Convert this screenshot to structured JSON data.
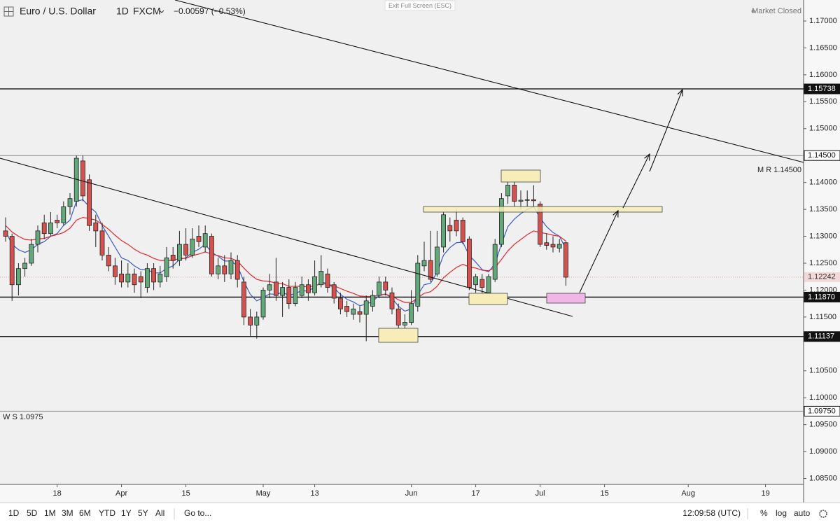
{
  "header": {
    "symbol": "Euro / U.S. Dollar",
    "interval": "1D",
    "exchange": "FXCM",
    "change": "−0.00597 (−0.53%)",
    "exit": "Exit Full Screen (ESC)",
    "status": "Market Closed"
  },
  "toolbar": {
    "ranges": [
      "1D",
      "5D",
      "1M",
      "3M",
      "6M",
      "YTD",
      "1Y",
      "5Y",
      "All"
    ],
    "goto": "Go to...",
    "clock": "12:09:58 (UTC)",
    "percent": "%",
    "log": "log",
    "auto": "auto"
  },
  "chart_data": {
    "type": "candlestick",
    "up_color": "#62a878",
    "down_color": "#d5514e",
    "ylim": [
      1.0839,
      1.1739
    ],
    "yticks": [
      {
        "value": 1.17,
        "label": "1.17000"
      },
      {
        "value": 1.165,
        "label": "1.16500"
      },
      {
        "value": 1.16,
        "label": "1.16000"
      },
      {
        "value": 1.155,
        "label": "1.15500"
      },
      {
        "value": 1.15,
        "label": "1.15000"
      },
      {
        "value": 1.14,
        "label": "1.14000"
      },
      {
        "value": 1.135,
        "label": "1.13500"
      },
      {
        "value": 1.13,
        "label": "1.13000"
      },
      {
        "value": 1.125,
        "label": "1.12500"
      },
      {
        "value": 1.12,
        "label": "1.12000"
      },
      {
        "value": 1.115,
        "label": "1.11500"
      },
      {
        "value": 1.105,
        "label": "1.10500"
      },
      {
        "value": 1.1,
        "label": "1.10000"
      },
      {
        "value": 1.095,
        "label": "1.09500"
      },
      {
        "value": 1.09,
        "label": "1.09000"
      },
      {
        "value": 1.085,
        "label": "1.08500"
      }
    ],
    "xticks": [
      {
        "value": 8,
        "label": "18"
      },
      {
        "value": 18,
        "label": "Apr"
      },
      {
        "value": 28,
        "label": "15"
      },
      {
        "value": 40,
        "label": "May"
      },
      {
        "value": 48,
        "label": "13"
      },
      {
        "value": 63,
        "label": "Jun"
      },
      {
        "value": 73,
        "label": "17"
      },
      {
        "value": 83,
        "label": "Jul"
      },
      {
        "value": 93,
        "label": "15"
      },
      {
        "value": 106,
        "label": "Aug"
      },
      {
        "value": 118,
        "label": "19"
      }
    ],
    "candles": [
      [
        1.131,
        1.1335,
        1.129,
        1.13
      ],
      [
        1.13,
        1.1305,
        1.118,
        1.121
      ],
      [
        1.121,
        1.125,
        1.119,
        1.124
      ],
      [
        1.124,
        1.126,
        1.1225,
        1.125
      ],
      [
        1.125,
        1.1295,
        1.1245,
        1.1285
      ],
      [
        1.1285,
        1.132,
        1.127,
        1.131
      ],
      [
        1.1325,
        1.134,
        1.1295,
        1.1305
      ],
      [
        1.1305,
        1.1345,
        1.13,
        1.1325
      ],
      [
        1.133,
        1.134,
        1.1315,
        1.1325
      ],
      [
        1.1325,
        1.1365,
        1.132,
        1.1355
      ],
      [
        1.1355,
        1.138,
        1.134,
        1.137
      ],
      [
        1.1365,
        1.145,
        1.1355,
        1.1445
      ],
      [
        1.144,
        1.145,
        1.1365,
        1.1375
      ],
      [
        1.1405,
        1.1415,
        1.131,
        1.132
      ],
      [
        1.1325,
        1.134,
        1.128,
        1.131
      ],
      [
        1.131,
        1.1325,
        1.1255,
        1.1265
      ],
      [
        1.1265,
        1.128,
        1.1235,
        1.1245
      ],
      [
        1.1245,
        1.126,
        1.121,
        1.1225
      ],
      [
        1.123,
        1.1255,
        1.1205,
        1.1215
      ],
      [
        1.1215,
        1.125,
        1.1205,
        1.123
      ],
      [
        1.123,
        1.124,
        1.1195,
        1.121
      ],
      [
        1.1225,
        1.1235,
        1.1185,
        1.1215
      ],
      [
        1.1205,
        1.125,
        1.1195,
        1.124
      ],
      [
        1.124,
        1.125,
        1.12,
        1.1215
      ],
      [
        1.1215,
        1.1245,
        1.1205,
        1.123
      ],
      [
        1.1225,
        1.128,
        1.1215,
        1.126
      ],
      [
        1.1265,
        1.128,
        1.124,
        1.1255
      ],
      [
        1.1255,
        1.131,
        1.1245,
        1.1285
      ],
      [
        1.1285,
        1.1315,
        1.1255,
        1.1265
      ],
      [
        1.1265,
        1.1315,
        1.126,
        1.1295
      ],
      [
        1.13,
        1.132,
        1.128,
        1.129
      ],
      [
        1.128,
        1.132,
        1.127,
        1.1305
      ],
      [
        1.13,
        1.1305,
        1.1225,
        1.123
      ],
      [
        1.123,
        1.126,
        1.122,
        1.1245
      ],
      [
        1.1245,
        1.1265,
        1.1215,
        1.123
      ],
      [
        1.123,
        1.127,
        1.122,
        1.1255
      ],
      [
        1.1255,
        1.1265,
        1.1205,
        1.122
      ],
      [
        1.1215,
        1.1225,
        1.1135,
        1.115
      ],
      [
        1.115,
        1.1165,
        1.1115,
        1.1135
      ],
      [
        1.1135,
        1.116,
        1.111,
        1.115
      ],
      [
        1.115,
        1.1205,
        1.1145,
        1.12
      ],
      [
        1.12,
        1.123,
        1.1185,
        1.121
      ],
      [
        1.1215,
        1.126,
        1.118,
        1.119
      ],
      [
        1.119,
        1.1215,
        1.115,
        1.1205
      ],
      [
        1.1205,
        1.122,
        1.1165,
        1.1175
      ],
      [
        1.1175,
        1.1215,
        1.117,
        1.1205
      ],
      [
        1.119,
        1.1225,
        1.1185,
        1.121
      ],
      [
        1.121,
        1.122,
        1.118,
        1.1195
      ],
      [
        1.1195,
        1.1255,
        1.119,
        1.1225
      ],
      [
        1.121,
        1.1265,
        1.1205,
        1.1235
      ],
      [
        1.123,
        1.124,
        1.1195,
        1.1205
      ],
      [
        1.121,
        1.1215,
        1.1175,
        1.1185
      ],
      [
        1.1185,
        1.1195,
        1.1155,
        1.1165
      ],
      [
        1.117,
        1.118,
        1.115,
        1.116
      ],
      [
        1.1155,
        1.1175,
        1.1145,
        1.1165
      ],
      [
        1.116,
        1.117,
        1.114,
        1.1155
      ],
      [
        1.1155,
        1.119,
        1.1105,
        1.118
      ],
      [
        1.117,
        1.12,
        1.116,
        1.119
      ],
      [
        1.119,
        1.1225,
        1.1185,
        1.1215
      ],
      [
        1.1215,
        1.1225,
        1.119,
        1.12
      ],
      [
        1.1195,
        1.1205,
        1.1155,
        1.1165
      ],
      [
        1.1165,
        1.1175,
        1.112,
        1.1135
      ],
      [
        1.1135,
        1.1155,
        1.1115,
        1.114
      ],
      [
        1.114,
        1.12,
        1.1135,
        1.1175
      ],
      [
        1.117,
        1.1265,
        1.116,
        1.125
      ],
      [
        1.1245,
        1.129,
        1.1235,
        1.1255
      ],
      [
        1.1255,
        1.131,
        1.1215,
        1.122
      ],
      [
        1.123,
        1.131,
        1.1225,
        1.128
      ],
      [
        1.128,
        1.1345,
        1.127,
        1.134
      ],
      [
        1.132,
        1.1335,
        1.129,
        1.131
      ],
      [
        1.133,
        1.135,
        1.13,
        1.131
      ],
      [
        1.133,
        1.1335,
        1.1285,
        1.129
      ],
      [
        1.1295,
        1.13,
        1.12,
        1.1205
      ],
      [
        1.121,
        1.123,
        1.1195,
        1.1225
      ],
      [
        1.122,
        1.123,
        1.119,
        1.1205
      ],
      [
        1.1195,
        1.123,
        1.118,
        1.1225
      ],
      [
        1.122,
        1.1295,
        1.1215,
        1.1285
      ],
      [
        1.1285,
        1.138,
        1.128,
        1.137
      ],
      [
        1.1375,
        1.141,
        1.136,
        1.1395
      ],
      [
        1.1395,
        1.141,
        1.1355,
        1.1365
      ],
      [
        1.1365,
        1.1385,
        1.135,
        1.1367
      ],
      [
        1.1368,
        1.1385,
        1.1355,
        1.1368
      ],
      [
        1.1368,
        1.1395,
        1.1355,
        1.1366
      ],
      [
        1.136,
        1.1365,
        1.128,
        1.1285
      ],
      [
        1.1288,
        1.1305,
        1.1275,
        1.1283
      ],
      [
        1.1285,
        1.13,
        1.127,
        1.128
      ],
      [
        1.1278,
        1.1295,
        1.127,
        1.1285
      ],
      [
        1.1288,
        1.129,
        1.1208,
        1.1224
      ]
    ],
    "moving_averages": [
      {
        "color": "#3b5bc4",
        "values": [
          1.131,
          1.1285,
          1.1275,
          1.127,
          1.1275,
          1.1285,
          1.129,
          1.13,
          1.1305,
          1.132,
          1.133,
          1.1365,
          1.1368,
          1.1355,
          1.1345,
          1.132,
          1.13,
          1.128,
          1.126,
          1.1255,
          1.1245,
          1.1238,
          1.1238,
          1.1232,
          1.1232,
          1.124,
          1.1245,
          1.1257,
          1.126,
          1.127,
          1.1276,
          1.1285,
          1.127,
          1.1263,
          1.1254,
          1.1254,
          1.1245,
          1.1216,
          1.1192,
          1.118,
          1.1186,
          1.1193,
          1.1192,
          1.1196,
          1.119,
          1.1194,
          1.1199,
          1.1198,
          1.1206,
          1.1215,
          1.1212,
          1.1204,
          1.1192,
          1.1183,
          1.1178,
          1.1171,
          1.1174,
          1.1179,
          1.119,
          1.1193,
          1.1185,
          1.117,
          1.1161,
          1.1165,
          1.1191,
          1.121,
          1.1213,
          1.1233,
          1.1265,
          1.1279,
          1.1288,
          1.1289,
          1.1264,
          1.1252,
          1.1238,
          1.1234,
          1.1249,
          1.1286,
          1.1318,
          1.1332,
          1.1342,
          1.135,
          1.1355,
          1.1334,
          1.1318,
          1.1307,
          1.13,
          1.1277
        ]
      },
      {
        "color": "#e3262b",
        "values": [
          1.132,
          1.1308,
          1.13,
          1.1294,
          1.1293,
          1.1295,
          1.1296,
          1.13,
          1.1303,
          1.1307,
          1.1315,
          1.133,
          1.1335,
          1.1333,
          1.133,
          1.1322,
          1.1313,
          1.1302,
          1.1292,
          1.1285,
          1.1276,
          1.1269,
          1.1265,
          1.1259,
          1.1255,
          1.1255,
          1.1255,
          1.1259,
          1.1259,
          1.1264,
          1.1267,
          1.1271,
          1.1267,
          1.1264,
          1.126,
          1.1259,
          1.1254,
          1.1241,
          1.1229,
          1.122,
          1.1217,
          1.1216,
          1.1213,
          1.1212,
          1.1207,
          1.1207,
          1.1207,
          1.1206,
          1.1208,
          1.1212,
          1.1211,
          1.1208,
          1.1203,
          1.1198,
          1.1194,
          1.1189,
          1.1188,
          1.1188,
          1.1191,
          1.1192,
          1.1189,
          1.1182,
          1.1177,
          1.1177,
          1.1186,
          1.1194,
          1.1197,
          1.1207,
          1.1223,
          1.1233,
          1.1242,
          1.1248,
          1.1243,
          1.1241,
          1.1237,
          1.1236,
          1.1242,
          1.1257,
          1.1273,
          1.1285,
          1.1294,
          1.1303,
          1.131,
          1.1307,
          1.1305,
          1.1302,
          1.13,
          1.1291
        ]
      }
    ],
    "price_lines": [
      {
        "value": 1.15738,
        "label": "1.15738",
        "color": "#000000"
      },
      {
        "value": 1.145,
        "label": "1.14500",
        "color": "#8a8a8a"
      },
      {
        "value": 1.1187,
        "label": "1.11870",
        "color": "#000000"
      },
      {
        "value": 1.11137,
        "label": "1.11137",
        "color": "#000000"
      },
      {
        "value": 1.0975,
        "label": "1.09750",
        "color": "#8a8a8a"
      }
    ],
    "last_price": {
      "value": 1.12242,
      "label": "1.12242"
    },
    "annotations": [
      "M R 1.14500",
      "W S 1.0975"
    ]
  }
}
